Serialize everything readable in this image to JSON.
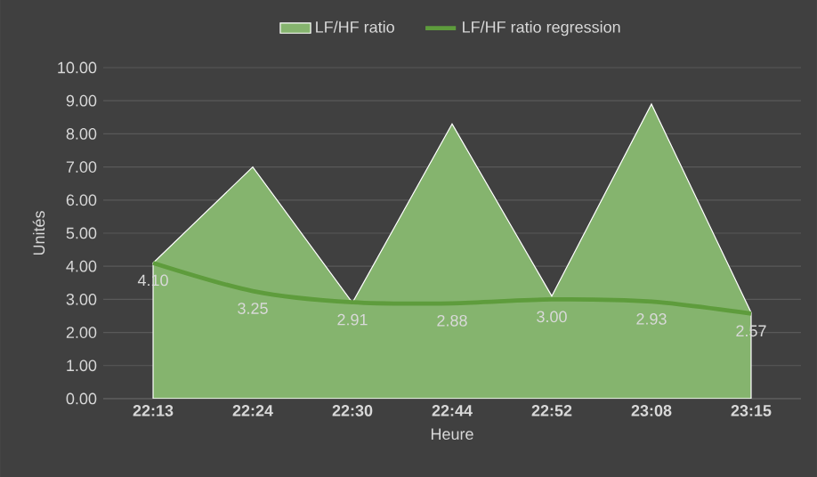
{
  "chart_data": {
    "type": "area",
    "xlabel": "Heure",
    "ylabel": "Unités",
    "categories": [
      "22:13",
      "22:24",
      "22:30",
      "22:44",
      "22:52",
      "23:08",
      "23:15"
    ],
    "series": [
      {
        "name": "LF/HF ratio",
        "color": "#85b46e",
        "values": [
          4.1,
          7.0,
          2.9,
          8.3,
          3.1,
          8.9,
          2.6
        ]
      },
      {
        "name": "LF/HF ratio regression",
        "type": "line",
        "color": "#5e9c3c",
        "values": [
          4.1,
          3.25,
          2.91,
          2.88,
          3.0,
          2.93,
          2.57
        ],
        "value_labels": [
          "4.10",
          "3.25",
          "2.91",
          "2.88",
          "3.00",
          "2.93",
          "2.57"
        ]
      }
    ],
    "ylim": [
      0,
      10
    ],
    "yticks": [
      {
        "value": 0,
        "label": "0.00"
      },
      {
        "value": 1,
        "label": "1.00"
      },
      {
        "value": 2,
        "label": "2.00"
      },
      {
        "value": 3,
        "label": "3.00"
      },
      {
        "value": 4,
        "label": "4.00"
      },
      {
        "value": 5,
        "label": "5.00"
      },
      {
        "value": 6,
        "label": "6.00"
      },
      {
        "value": 7,
        "label": "7.00"
      },
      {
        "value": 8,
        "label": "8.00"
      },
      {
        "value": 9,
        "label": "9.00"
      },
      {
        "value": 10,
        "label": "10.00"
      }
    ],
    "grid": "y",
    "legend": "top"
  }
}
